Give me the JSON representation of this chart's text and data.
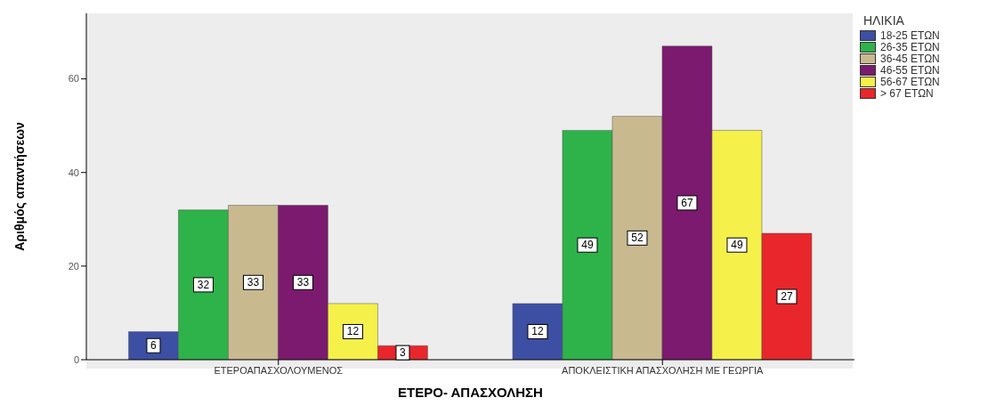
{
  "chart_data": {
    "type": "bar",
    "xlabel": "ΕΤΕΡΟ- ΑΠΑΣΧΟΛΗΣΗ",
    "ylabel": "Αριθμός απαντήσεων",
    "legend_title": "ΗΛΙΚΙΑ",
    "categories": [
      "ΕΤΕΡΟΑΠΑΣΧΟΛΟΥΜΕΝΟΣ",
      "ΑΠΟΚΛΕΙΣΤΙΚΗ ΑΠΑΣΧΟΛΗΣΗ ΜΕ ΓΕΩΡΓΙΑ"
    ],
    "series": [
      {
        "name": "18-25 ΕΤΩΝ",
        "color": "#3d4fa3",
        "values": [
          6,
          12
        ]
      },
      {
        "name": "26-35 ΕΤΩΝ",
        "color": "#2db34a",
        "values": [
          32,
          49
        ]
      },
      {
        "name": "36-45 ΕΤΩΝ",
        "color": "#c9b98f",
        "values": [
          33,
          52
        ]
      },
      {
        "name": "46-55 ΕΤΩΝ",
        "color": "#7b1a6e",
        "values": [
          33,
          67
        ]
      },
      {
        "name": "56-67 ΕΤΩΝ",
        "color": "#f5f04a",
        "values": [
          12,
          49
        ]
      },
      {
        "name": "> 67 ΕΤΩΝ",
        "color": "#e8262b",
        "values": [
          3,
          27
        ]
      }
    ],
    "ylim": [
      0,
      74
    ],
    "yticks": [
      0,
      20,
      40,
      60
    ],
    "grid": false,
    "legend": "top right",
    "data_labels": true
  }
}
